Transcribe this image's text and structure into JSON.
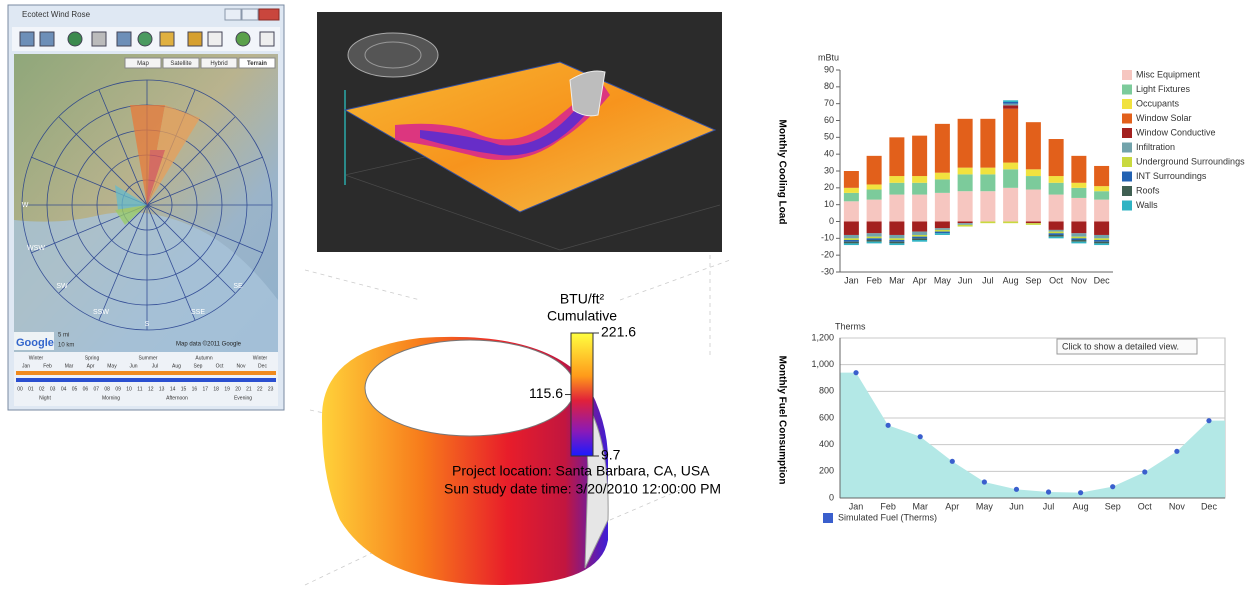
{
  "wind_rose": {
    "title": "Ecotect Wind Rose",
    "map_types": [
      "Map",
      "Satellite",
      "Hybrid",
      "Terrain"
    ],
    "directions": [
      "W",
      "WSW",
      "SW",
      "SSW",
      "S",
      "SSE",
      "SE"
    ],
    "scale": [
      "5 mi",
      "10 km"
    ],
    "logo": "Google",
    "attribution": "Map data ©2011 Google",
    "seasons": [
      "Winter",
      "Spring",
      "Summer",
      "Autumn",
      "Winter"
    ],
    "months": [
      "Jan",
      "Feb",
      "Mar",
      "Apr",
      "May",
      "Jun",
      "Jul",
      "Aug",
      "Sep",
      "Oct",
      "Nov",
      "Dec"
    ],
    "hours": [
      "00",
      "01",
      "02",
      "03",
      "04",
      "05",
      "06",
      "07",
      "08",
      "09",
      "10",
      "11",
      "12",
      "13",
      "14",
      "15",
      "16",
      "17",
      "18",
      "19",
      "20",
      "21",
      "22",
      "23"
    ],
    "day_periods": [
      "Night",
      "Morning",
      "Afternoon",
      "Evening"
    ]
  },
  "sun_study": {
    "unit": "BTU/ft²",
    "label": "Cumulative",
    "scale_ticks": [
      221.6,
      115.6,
      9.7
    ],
    "location": "Project location: Santa Barbara, CA, USA",
    "date_time": "Sun study date time: 3/20/2010 12:00:00 PM"
  },
  "chart_data": [
    {
      "type": "bar",
      "stacked": true,
      "y_label": "Monthly Cooling Load",
      "unit_label": "mBtu",
      "categories": [
        "Jan",
        "Feb",
        "Mar",
        "Apr",
        "May",
        "Jun",
        "Jul",
        "Aug",
        "Sep",
        "Oct",
        "Nov",
        "Dec"
      ],
      "ylim": [
        -30,
        90
      ],
      "yticks": [
        -30,
        -20,
        -10,
        0,
        10,
        20,
        30,
        40,
        50,
        60,
        70,
        80,
        90
      ],
      "grid": false,
      "series": [
        {
          "name": "Misc Equipment",
          "color": "#f6c6c0",
          "values": [
            12,
            13,
            16,
            16,
            17,
            18,
            18,
            20,
            19,
            16,
            14,
            13
          ]
        },
        {
          "name": "Light Fixtures",
          "color": "#7ccb9b",
          "values": [
            5,
            6,
            7,
            7,
            8,
            10,
            10,
            11,
            8,
            7,
            6,
            5
          ]
        },
        {
          "name": "Occupants",
          "color": "#f1e23f",
          "values": [
            3,
            3,
            4,
            4,
            4,
            4,
            4,
            4,
            4,
            4,
            3,
            3
          ]
        },
        {
          "name": "Window Solar",
          "color": "#e2601b",
          "values": [
            10,
            17,
            23,
            24,
            29,
            29,
            29,
            32,
            28,
            22,
            16,
            12
          ]
        },
        {
          "name": "Window Conductive",
          "color": "#a3201f",
          "values": [
            -8,
            -7,
            -8,
            -6,
            -4,
            -1,
            0,
            2,
            -1,
            -5,
            -7,
            -8
          ]
        },
        {
          "name": "Infiltration",
          "color": "#72a3ab",
          "values": [
            -2,
            -2,
            -2,
            -2,
            -1,
            -1,
            0,
            1,
            0,
            -1,
            -2,
            -2
          ]
        },
        {
          "name": "Underground Surroundings",
          "color": "#c9d93f",
          "values": [
            -1,
            -1,
            -1,
            -1,
            -1,
            -1,
            -1,
            -1,
            -1,
            -1,
            -1,
            -1
          ]
        },
        {
          "name": "INT Surroundings",
          "color": "#2362b2",
          "values": [
            -1,
            -1,
            -1,
            -1,
            -1,
            0,
            0,
            1,
            0,
            -1,
            -1,
            -1
          ]
        },
        {
          "name": "Roofs",
          "color": "#3f5f52",
          "values": [
            -1,
            -1,
            -1,
            -1,
            0,
            0,
            0,
            0,
            0,
            -1,
            -1,
            -1
          ]
        },
        {
          "name": "Walls",
          "color": "#2fb3c3",
          "values": [
            -1,
            -1,
            -1,
            -1,
            -1,
            0,
            0,
            1,
            0,
            -1,
            -1,
            -1
          ]
        }
      ]
    },
    {
      "type": "area",
      "y_label": "Monthly Fuel Consumption",
      "unit_label": "Therms",
      "tooltip": "Click to show a detailed view.",
      "categories": [
        "Jan",
        "Feb",
        "Mar",
        "Apr",
        "May",
        "Jun",
        "Jul",
        "Aug",
        "Sep",
        "Oct",
        "Nov",
        "Dec"
      ],
      "ylim": [
        0,
        1200
      ],
      "yticks": [
        0,
        200,
        400,
        600,
        800,
        {
          "value": 1000,
          "label": "1,000"
        },
        {
          "value": 1200,
          "label": "1,200"
        }
      ],
      "grid": true,
      "series": [
        {
          "name": "Simulated Fuel (Therms)",
          "color": "#3a5fcd",
          "fill": "#b3e8e6",
          "values": [
            940,
            545,
            460,
            275,
            120,
            65,
            45,
            40,
            85,
            195,
            350,
            580
          ]
        }
      ]
    }
  ]
}
